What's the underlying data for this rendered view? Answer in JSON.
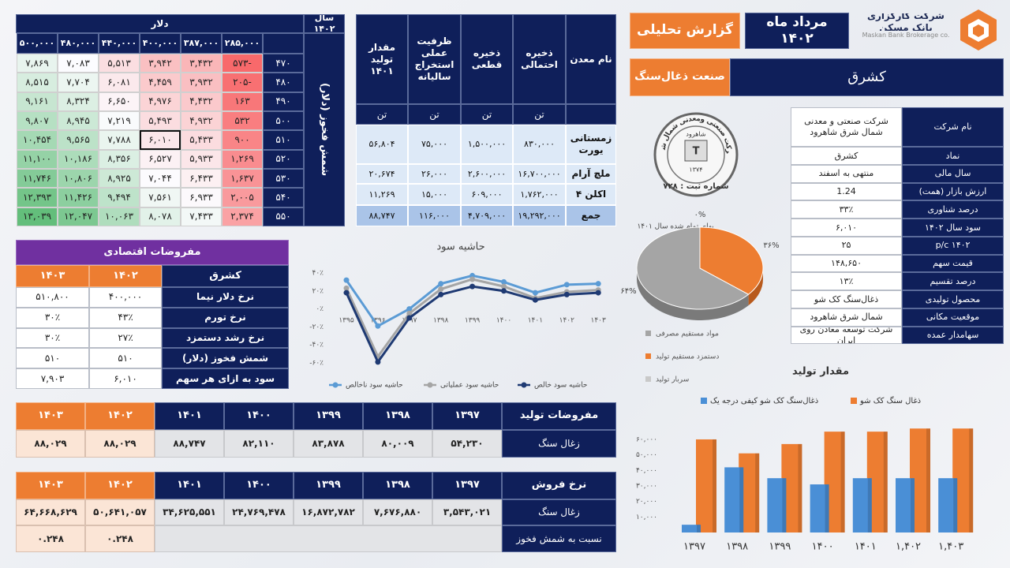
{
  "header": {
    "company": "شرکت کارگزاری بانک مسکن",
    "company_en": "Maskan Bank Brokerage co.",
    "date": "مرداد ماه ۱۴۰۲",
    "report": "گزارش تحلیلی",
    "symbol": "کشرق",
    "industry": "صنعت ذغال‌سنگ"
  },
  "company_info": {
    "rows": [
      [
        "نام شرکت",
        "شرکت صنعتی و معدنی شمال شرق شاهرود"
      ],
      [
        "نماد",
        "کشرق"
      ],
      [
        "سال مالی",
        "منتهی به اسفند"
      ],
      [
        "ارزش بازار (همت)",
        "1.24"
      ],
      [
        "درصد شناوری",
        "۳۳٪"
      ],
      [
        "سود سال ۱۴۰۲",
        "۶,۰۱۰"
      ],
      [
        "p/c ۱۴۰۲",
        "۲۵"
      ],
      [
        "قیمت سهم",
        "۱۴۸,۶۵۰"
      ],
      [
        "درصد تقسیم",
        "۱۳٪"
      ],
      [
        "محصول تولیدی",
        "ذغال‌سنگ کک شو"
      ],
      [
        "موقعیت مکانی",
        "شمال شرق شاهرود"
      ],
      [
        "سهامدار عمده",
        "شرکت توسعه معادن روی ایران"
      ]
    ]
  },
  "sensitivity": {
    "year": "سال ۱۴۰۲",
    "col_title": "دلار",
    "row_title": "شمش فخوز (دلار)",
    "columns": [
      "۲۸۵,۰۰۰",
      "۳۸۷,۰۰۰",
      "۴۰۰,۰۰۰",
      "۴۴۰,۰۰۰",
      "۴۸۰,۰۰۰",
      "۵۰۰,۰۰۰"
    ],
    "rows": [
      {
        "label": "۴۷۰",
        "cells": [
          "-۵۷۳",
          "۳,۴۳۲",
          "۳,۹۴۲",
          "۵,۵۱۳",
          "۷,۰۸۳",
          "۷,۸۶۹"
        ]
      },
      {
        "label": "۴۸۰",
        "cells": [
          "-۲۰۵",
          "۳,۹۳۲",
          "۴,۴۵۹",
          "۶,۰۸۱",
          "۷,۷۰۴",
          "۸,۵۱۵"
        ]
      },
      {
        "label": "۴۹۰",
        "cells": [
          "۱۶۳",
          "۴,۴۳۲",
          "۴,۹۷۶",
          "۶,۶۵۰",
          "۸,۳۲۴",
          "۹,۱۶۱"
        ]
      },
      {
        "label": "۵۰۰",
        "cells": [
          "۵۳۲",
          "۴,۹۳۲",
          "۵,۴۹۳",
          "۷,۲۱۹",
          "۸,۹۴۵",
          "۹,۸۰۷"
        ]
      },
      {
        "label": "۵۱۰",
        "cells": [
          "۹۰۰",
          "۵,۴۳۳",
          "۶,۰۱۰",
          "۷,۷۸۸",
          "۹,۵۶۵",
          "۱۰,۴۵۴"
        ]
      },
      {
        "label": "۵۲۰",
        "cells": [
          "۱,۲۶۹",
          "۵,۹۳۳",
          "۶,۵۲۷",
          "۸,۳۵۶",
          "۱۰,۱۸۶",
          "۱۱,۱۰۰"
        ]
      },
      {
        "label": "۵۳۰",
        "cells": [
          "۱,۶۳۷",
          "۶,۴۳۳",
          "۷,۰۴۴",
          "۸,۹۲۵",
          "۱۰,۸۰۶",
          "۱۱,۷۴۶"
        ]
      },
      {
        "label": "۵۴۰",
        "cells": [
          "۲,۰۰۵",
          "۶,۹۳۳",
          "۷,۵۶۱",
          "۹,۴۹۴",
          "۱۱,۴۲۶",
          "۱۲,۳۹۳"
        ]
      },
      {
        "label": "۵۵۰",
        "cells": [
          "۲,۳۷۴",
          "۷,۴۳۳",
          "۸,۰۷۸",
          "۱۰,۰۶۳",
          "۱۲,۰۴۷",
          "۱۳,۰۳۹"
        ]
      }
    ]
  },
  "mines": {
    "headers": [
      "نام معدن",
      "ذخیره احتمالی",
      "ذخیره قطعی",
      "ظرفیت عملی استخراج سالیانه",
      "مقدار تولید ۱۴۰۱"
    ],
    "units": [
      "تن",
      "تن",
      "تن",
      "تن"
    ],
    "rows": [
      [
        "زمستانی یورت",
        "۸۳۰,۰۰۰",
        "۱,۵۰۰,۰۰۰",
        "۷۵,۰۰۰",
        "۵۶,۸۰۴"
      ],
      [
        "ملچ آرام",
        "۱۶,۷۰۰,۰۰۰",
        "۲,۶۰۰,۰۰۰",
        "۲۶,۰۰۰",
        "۲۰,۶۷۴"
      ],
      [
        "اکلن ۴",
        "۱,۷۶۲,۰۰۰",
        "۶۰۹,۰۰۰",
        "۱۵,۰۰۰",
        "۱۱,۲۶۹"
      ],
      [
        "جمع",
        "۱۹,۲۹۲,۰۰۰",
        "۴,۷۰۹,۰۰۰",
        "۱۱۶,۰۰۰",
        "۸۸,۷۴۷"
      ]
    ]
  },
  "economic": {
    "title": "مفروضات اقتصادی",
    "headers": [
      "کشرق",
      "۱۴۰۲",
      "۱۴۰۳"
    ],
    "rows": [
      [
        "نرخ دلار نیما",
        "۴۰۰,۰۰۰",
        "۵۱۰,۸۰۰"
      ],
      [
        "نرخ تورم",
        "۴۳٪",
        "۳۰٪"
      ],
      [
        "نرخ رشد دستمزد",
        "۲۷٪",
        "۳۰٪"
      ],
      [
        "شمش فخوز (دلار)",
        "۵۱۰",
        "۵۱۰"
      ],
      [
        "سود به ازای هر سهم",
        "۶,۰۱۰",
        "۷,۹۰۳"
      ]
    ]
  },
  "production_table": {
    "title": "مفروضات تولید",
    "years": [
      "۱۳۹۷",
      "۱۳۹۸",
      "۱۳۹۹",
      "۱۴۰۰",
      "۱۴۰۱",
      "۱۴۰۲",
      "۱۴۰۳"
    ],
    "rows": [
      {
        "label": "زغال سنگ",
        "cells": [
          "۵۴,۲۳۰",
          "۸۰,۰۰۹",
          "۸۳,۸۷۸",
          "۸۲,۱۱۰",
          "۸۸,۷۴۷",
          "۸۸,۰۲۹",
          "۸۸,۰۲۹"
        ]
      }
    ]
  },
  "price_table": {
    "title": "نرخ فروش",
    "years": [
      "۱۳۹۷",
      "۱۳۹۸",
      "۱۳۹۹",
      "۱۴۰۰",
      "۱۴۰۱",
      "۱۴۰۲",
      "۱۴۰۳"
    ],
    "rows": [
      {
        "label": "زغال سنگ",
        "cells": [
          "۳,۵۴۳,۰۲۱",
          "۷,۶۷۶,۸۸۰",
          "۱۶,۸۷۲,۷۸۲",
          "۲۴,۷۶۹,۴۷۸",
          "۳۴,۶۲۵,۵۵۱",
          "۵۰,۶۴۱,۰۵۷",
          "۶۴,۶۶۸,۶۲۹"
        ]
      },
      {
        "label": "نسبت به شمش فخوز",
        "cells": [
          "۰.۲۴۸",
          "۰.۲۴۸"
        ]
      }
    ]
  },
  "stamp": {
    "top": "شرکت صنعتی ومعدنی شمال شرق",
    "city": "شاهرود",
    "year": "۱۳۷۴",
    "reg": "شماره ثبت : ۷۲۸"
  },
  "chart_data": [
    {
      "type": "line",
      "title": "حاشیه سود",
      "categories": [
        "۱۳۹۵",
        "۱۳۹۶",
        "۱۳۹۷",
        "۱۳۹۸",
        "۱۳۹۹",
        "۱۴۰۰",
        "۱۴۰۱",
        "۱۴۰۲",
        "۱۴۰۳"
      ],
      "ylim": [
        -60,
        40
      ],
      "yticks": [
        {
          "value": 40,
          "label": "۴۰٪"
        },
        {
          "value": 20,
          "label": "۲۰٪"
        },
        {
          "value": 0,
          "label": "۰٪"
        },
        {
          "value": -20,
          "label": "-۲۰٪"
        },
        {
          "value": -40,
          "label": "-۴۰٪"
        },
        {
          "value": -60,
          "label": "-۶۰٪"
        }
      ],
      "series": [
        {
          "name": "حاشیه سود ناخالص",
          "color": "#5b9bd5",
          "values": [
            32,
            -19,
            0,
            28,
            37,
            30,
            18,
            27,
            28
          ]
        },
        {
          "name": "حاشیه سود عملیاتی",
          "color": "#a5a5a5",
          "values": [
            23,
            -53,
            -5,
            22,
            33,
            25,
            12,
            19,
            21
          ]
        },
        {
          "name": "حاشیه سود خالص",
          "color": "#1f3a73",
          "values": [
            18,
            -59,
            -10,
            16,
            25,
            20,
            10,
            16,
            18
          ]
        }
      ]
    },
    {
      "type": "pie",
      "title": "بهای تمام شده سال ۱۴۰۱",
      "categories": [
        "مواد مستقیم مصرفی",
        "دستمزد مستقیم تولید",
        "سربار تولید"
      ],
      "values": [
        64,
        36,
        0
      ],
      "value_labels": [
        "۶۴%",
        "۳۶%",
        "۰%"
      ],
      "colors": [
        "#a5a5a5",
        "#ed7d31",
        "#c9c9c9"
      ]
    },
    {
      "type": "bar",
      "title": "مقدار تولید",
      "categories": [
        "۱۳۹۷",
        "۱۳۹۸",
        "۱۳۹۹",
        "۱۴۰۰",
        "۱۴۰۱",
        "۱,۴۰۲",
        "۱,۴۰۳"
      ],
      "ylim": [
        0,
        70000
      ],
      "yticks": [
        {
          "value": 10000,
          "label": "۱۰,۰۰۰"
        },
        {
          "value": 20000,
          "label": "۲۰,۰۰۰"
        },
        {
          "value": 30000,
          "label": "۳۰,۰۰۰"
        },
        {
          "value": 40000,
          "label": "۴۰,۰۰۰"
        },
        {
          "value": 50000,
          "label": "۵۰,۰۰۰"
        },
        {
          "value": 60000,
          "label": "۶۰,۰۰۰"
        }
      ],
      "series": [
        {
          "name": "ذغال سنگ کک شو",
          "color": "#ed7d31",
          "values": [
            60000,
            51000,
            57000,
            65000,
            65000,
            67000,
            67000
          ]
        },
        {
          "name": "ذغال‌سنگ کک شو کیفی درجه یک",
          "color": "#4a8fd6",
          "values": [
            5000,
            42000,
            35000,
            31000,
            35000,
            35000,
            35000
          ]
        }
      ]
    }
  ]
}
